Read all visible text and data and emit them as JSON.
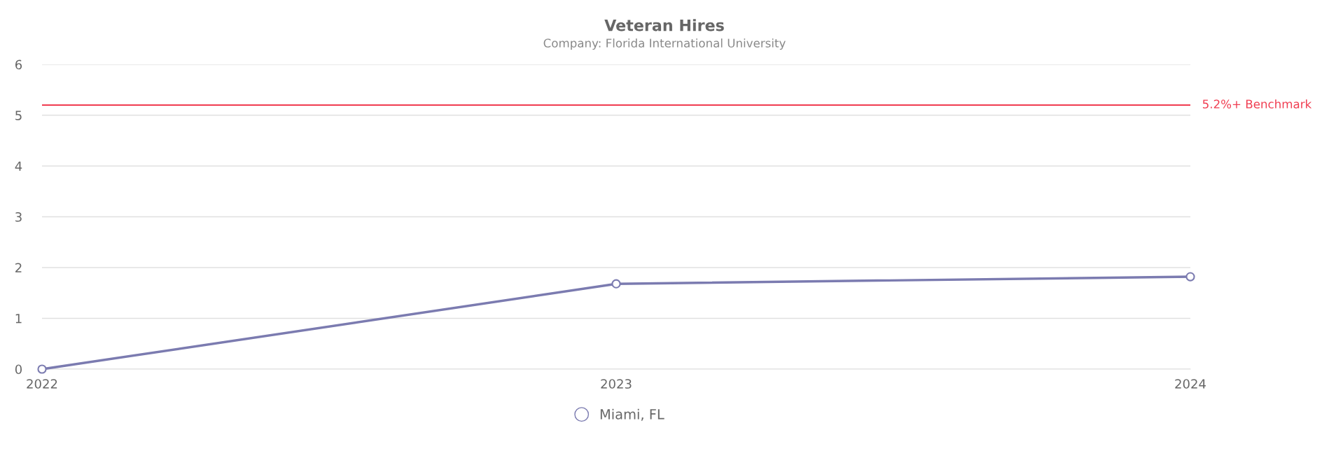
{
  "chart_data": {
    "type": "line",
    "title": "Veteran Hires",
    "subtitle": "Company: Florida International University",
    "categories": [
      "2022",
      "2023",
      "2024"
    ],
    "series": [
      {
        "name": "Miami, FL",
        "color": "#7b7bb0",
        "values": [
          0,
          1.68,
          1.82
        ]
      }
    ],
    "ylim": [
      0,
      6
    ],
    "yticks": [
      0,
      1,
      2,
      3,
      4,
      5,
      6
    ],
    "grid": "y",
    "legend": "bottom",
    "marker": "circle",
    "line_style": "solid",
    "ref_lines": [
      {
        "axis": "y",
        "value": 5.2,
        "label": "5.2%+ Benchmark",
        "color": "#f03c50"
      }
    ]
  }
}
